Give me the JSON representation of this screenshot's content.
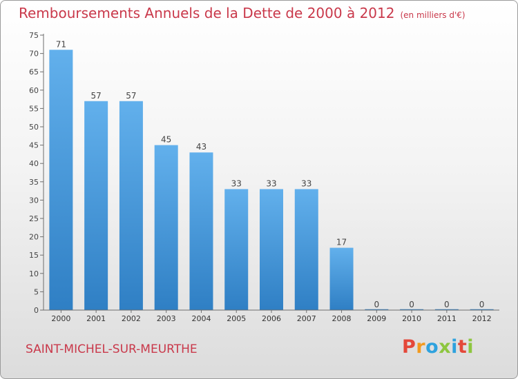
{
  "header": {
    "title": "Remboursements Annuels de la Dette de 2000 à 2012",
    "unit": "(en milliers d'€)"
  },
  "footer": {
    "city": "SAINT-MICHEL-SUR-MEURTHE",
    "logo": "Proxiti"
  },
  "colors": {
    "title": "#c9384a",
    "bar_light": "#62b0ec",
    "bar_dark": "#2f7fc4",
    "logo_letters": [
      "#e4483a",
      "#f29a1f",
      "#2ea2de",
      "#8dc63f",
      "#2ea2de",
      "#e4483a",
      "#8dc63f"
    ]
  },
  "chart_data": {
    "type": "bar",
    "title": "Remboursements Annuels de la Dette de 2000 à 2012",
    "xlabel": "",
    "ylabel": "",
    "categories": [
      "2000",
      "2001",
      "2002",
      "2003",
      "2004",
      "2005",
      "2006",
      "2007",
      "2008",
      "2009",
      "2010",
      "2011",
      "2012"
    ],
    "values": [
      71,
      57,
      57,
      45,
      43,
      33,
      33,
      33,
      17,
      0,
      0,
      0,
      0
    ],
    "ylim": [
      0,
      75
    ],
    "yticks": [
      0,
      5,
      10,
      15,
      20,
      25,
      30,
      35,
      40,
      45,
      50,
      55,
      60,
      65,
      70,
      75
    ],
    "grid": false
  }
}
